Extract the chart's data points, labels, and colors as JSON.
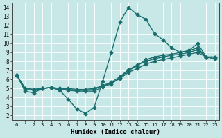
{
  "xlabel": "Humidex (Indice chaleur)",
  "xlim": [
    -0.5,
    23.5
  ],
  "ylim": [
    1.5,
    14.5
  ],
  "xticks": [
    0,
    1,
    2,
    3,
    4,
    5,
    6,
    7,
    8,
    9,
    10,
    11,
    12,
    13,
    14,
    15,
    16,
    17,
    18,
    19,
    20,
    21,
    22,
    23
  ],
  "yticks": [
    2,
    3,
    4,
    5,
    6,
    7,
    8,
    9,
    10,
    11,
    12,
    13,
    14
  ],
  "bg_color": "#c8e8e8",
  "line_color": "#1a6e6e",
  "series1_x": [
    0,
    1,
    2,
    3,
    4,
    5,
    6,
    7,
    8,
    9,
    10,
    11,
    12,
    13,
    14,
    15,
    16,
    17,
    18,
    19,
    20,
    21,
    22,
    23
  ],
  "series1_y": [
    6.5,
    4.7,
    4.5,
    5.0,
    5.1,
    4.8,
    3.8,
    2.7,
    2.2,
    2.9,
    5.8,
    9.0,
    12.4,
    14.0,
    13.2,
    12.7,
    11.1,
    10.4,
    9.5,
    9.0,
    9.2,
    10.0,
    8.5,
    8.5
  ],
  "series2_x": [
    0,
    1,
    2,
    3,
    4,
    5,
    6,
    7,
    8,
    9,
    10,
    11,
    12,
    13,
    14,
    15,
    16,
    17,
    18,
    19,
    20,
    21,
    22,
    23
  ],
  "series2_y": [
    6.5,
    4.9,
    4.8,
    5.0,
    5.1,
    5.0,
    4.8,
    4.7,
    4.7,
    4.7,
    5.2,
    5.5,
    6.2,
    7.0,
    7.5,
    8.2,
    8.5,
    8.7,
    8.8,
    9.0,
    9.2,
    9.5,
    8.5,
    8.5
  ],
  "series3_x": [
    0,
    1,
    2,
    3,
    4,
    5,
    6,
    7,
    8,
    9,
    10,
    11,
    12,
    13,
    14,
    15,
    16,
    17,
    18,
    19,
    20,
    21,
    22,
    23
  ],
  "series3_y": [
    6.5,
    5.0,
    4.9,
    5.0,
    5.1,
    5.0,
    4.9,
    4.8,
    4.8,
    4.9,
    5.3,
    5.7,
    6.3,
    7.1,
    7.6,
    8.0,
    8.3,
    8.5,
    8.7,
    8.8,
    9.0,
    9.3,
    8.5,
    8.3
  ],
  "series4_x": [
    0,
    1,
    2,
    3,
    4,
    5,
    6,
    7,
    8,
    9,
    10,
    11,
    12,
    13,
    14,
    15,
    16,
    17,
    18,
    19,
    20,
    21,
    22,
    23
  ],
  "series4_y": [
    6.5,
    5.0,
    4.9,
    5.0,
    5.1,
    5.0,
    5.0,
    4.9,
    4.9,
    5.0,
    5.3,
    5.6,
    6.1,
    6.8,
    7.2,
    7.7,
    8.0,
    8.2,
    8.4,
    8.6,
    8.8,
    9.0,
    8.5,
    8.3
  ],
  "marker": "D",
  "marker_size": 2.5,
  "linewidth": 1.0
}
